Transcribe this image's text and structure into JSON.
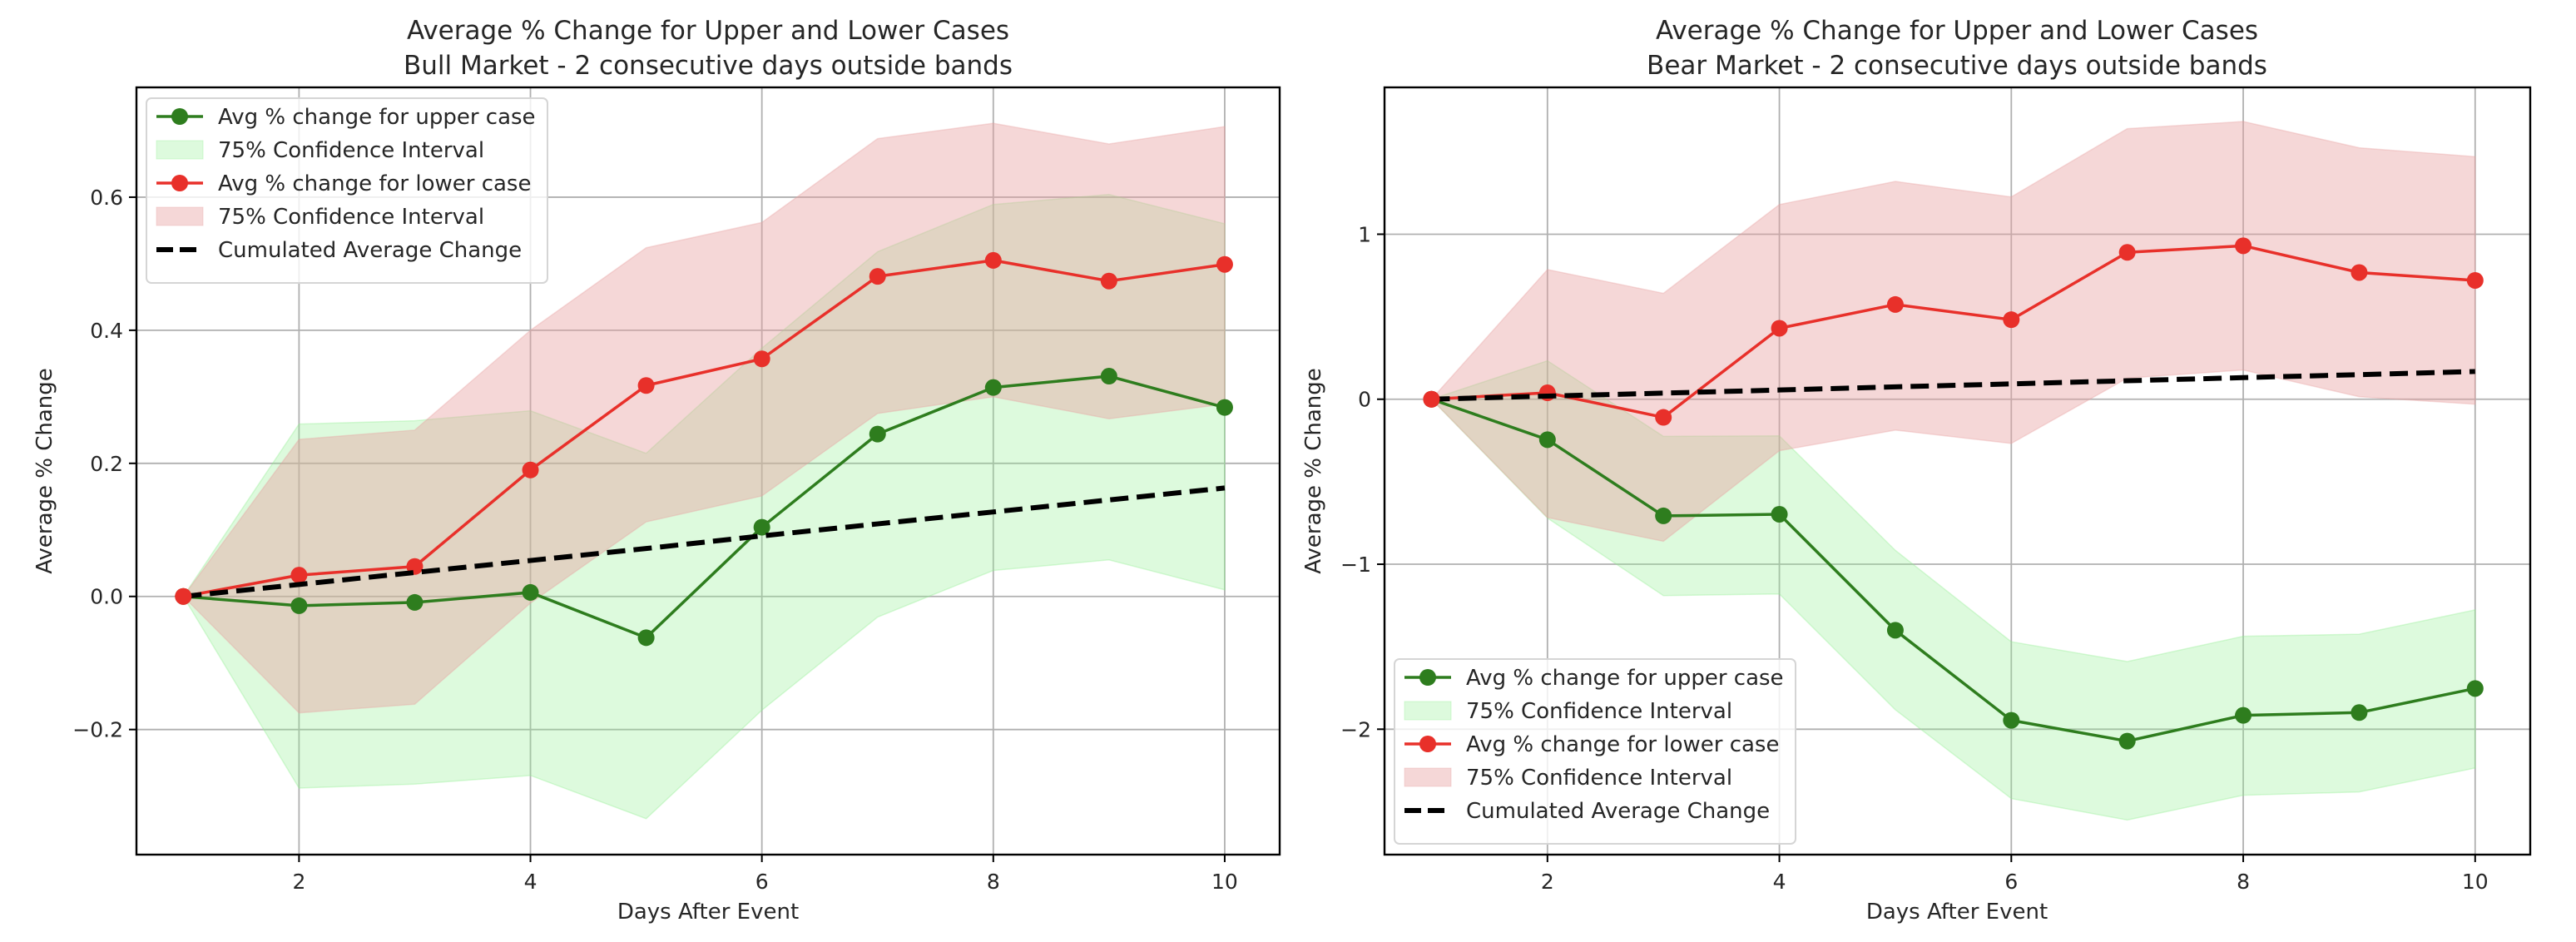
{
  "figure": {
    "background": "#ffffff"
  },
  "colors": {
    "upper_line": "#2e7d1e",
    "upper_band": "#90ee90",
    "lower_line": "#e8302a",
    "lower_band": "#e8a0a0",
    "cumulative": "#000000",
    "grid": "#b0b0b0"
  },
  "chart_data": [
    {
      "type": "line",
      "title": "Average % Change for Upper and Lower Cases",
      "subtitle": "Bull Market - 2 consecutive days outside bands",
      "xlabel": "Days After Event",
      "ylabel": "Average % Change",
      "xlim": [
        0.595,
        10.475
      ],
      "ylim": [
        -0.388,
        0.765
      ],
      "xticks": [
        2,
        4,
        6,
        8,
        10
      ],
      "xtick_labels": [
        "2",
        "4",
        "6",
        "8",
        "10"
      ],
      "yticks": [
        -0.2,
        0.0,
        0.2,
        0.4,
        0.6
      ],
      "ytick_labels": [
        "−0.2",
        "0.0",
        "0.2",
        "0.4",
        "0.6"
      ],
      "grid": true,
      "legend_position": "upper-left",
      "x": [
        1,
        2,
        3,
        4,
        5,
        6,
        7,
        8,
        9,
        10
      ],
      "series": [
        {
          "name": "Avg % change for upper case",
          "kind": "line-marker",
          "color_key": "upper_line",
          "values": [
            0.0,
            -0.014,
            -0.009,
            0.006,
            -0.062,
            0.104,
            0.244,
            0.314,
            0.331,
            0.284
          ]
        },
        {
          "name": "75% Confidence Interval",
          "kind": "band",
          "color_key": "upper_band",
          "upper": [
            0.0,
            0.259,
            0.264,
            0.279,
            0.215,
            0.373,
            0.518,
            0.589,
            0.604,
            0.56
          ],
          "lower": [
            0.0,
            -0.288,
            -0.282,
            -0.269,
            -0.334,
            -0.171,
            -0.031,
            0.039,
            0.055,
            0.01
          ]
        },
        {
          "name": "Avg % change for lower case",
          "kind": "line-marker",
          "color_key": "lower_line",
          "values": [
            0.0,
            0.032,
            0.045,
            0.19,
            0.317,
            0.357,
            0.481,
            0.505,
            0.474,
            0.499
          ]
        },
        {
          "name": "75% Confidence Interval",
          "kind": "band",
          "color_key": "lower_band",
          "upper": [
            0.0,
            0.236,
            0.25,
            0.4,
            0.524,
            0.562,
            0.688,
            0.711,
            0.68,
            0.706
          ],
          "lower": [
            0.0,
            -0.175,
            -0.162,
            -0.01,
            0.112,
            0.151,
            0.275,
            0.3,
            0.267,
            0.289
          ]
        },
        {
          "name": "Cumulated Average Change",
          "kind": "dashed",
          "color_key": "cumulative",
          "values": [
            0.0,
            0.018,
            0.036,
            0.054,
            0.072,
            0.091,
            0.109,
            0.127,
            0.145,
            0.163
          ]
        }
      ]
    },
    {
      "type": "line",
      "title": "Average % Change for Upper and Lower Cases",
      "subtitle": "Bear Market - 2 consecutive days outside bands",
      "xlabel": "Days After Event",
      "ylabel": "Average % Change",
      "xlim": [
        0.595,
        10.475
      ],
      "ylim": [
        -2.76,
        1.89
      ],
      "xticks": [
        2,
        4,
        6,
        8,
        10
      ],
      "xtick_labels": [
        "2",
        "4",
        "6",
        "8",
        "10"
      ],
      "yticks": [
        -2,
        -1,
        0,
        1
      ],
      "ytick_labels": [
        "−2",
        "−1",
        "0",
        "1"
      ],
      "grid": true,
      "legend_position": "lower-left",
      "x": [
        1,
        2,
        3,
        4,
        5,
        6,
        7,
        8,
        9,
        10
      ],
      "series": [
        {
          "name": "Avg % change for upper case",
          "kind": "line-marker",
          "color_key": "upper_line",
          "values": [
            0.0,
            -0.245,
            -0.707,
            -0.697,
            -1.4,
            -1.946,
            -2.072,
            -1.916,
            -1.899,
            -1.753
          ]
        },
        {
          "name": "75% Confidence Interval",
          "kind": "band",
          "color_key": "upper_band",
          "upper": [
            0.0,
            0.233,
            -0.225,
            -0.222,
            -0.916,
            -1.47,
            -1.59,
            -1.437,
            -1.424,
            -1.277
          ],
          "lower": [
            0.0,
            -0.72,
            -1.19,
            -1.18,
            -1.882,
            -2.42,
            -2.55,
            -2.4,
            -2.38,
            -2.235
          ]
        },
        {
          "name": "Avg % change for lower case",
          "kind": "line-marker",
          "color_key": "lower_line",
          "values": [
            0.0,
            0.039,
            -0.11,
            0.43,
            0.574,
            0.482,
            0.89,
            0.93,
            0.768,
            0.72
          ]
        },
        {
          "name": "75% Confidence Interval",
          "kind": "band",
          "color_key": "lower_band",
          "upper": [
            0.0,
            0.786,
            0.642,
            1.18,
            1.32,
            1.226,
            1.64,
            1.683,
            1.524,
            1.47
          ],
          "lower": [
            0.0,
            -0.717,
            -0.861,
            -0.312,
            -0.187,
            -0.268,
            0.128,
            0.177,
            0.015,
            -0.03
          ]
        },
        {
          "name": "Cumulated Average Change",
          "kind": "dashed",
          "color_key": "cumulative",
          "values": [
            0.0,
            0.019,
            0.037,
            0.056,
            0.075,
            0.093,
            0.112,
            0.131,
            0.149,
            0.168
          ]
        }
      ]
    }
  ]
}
